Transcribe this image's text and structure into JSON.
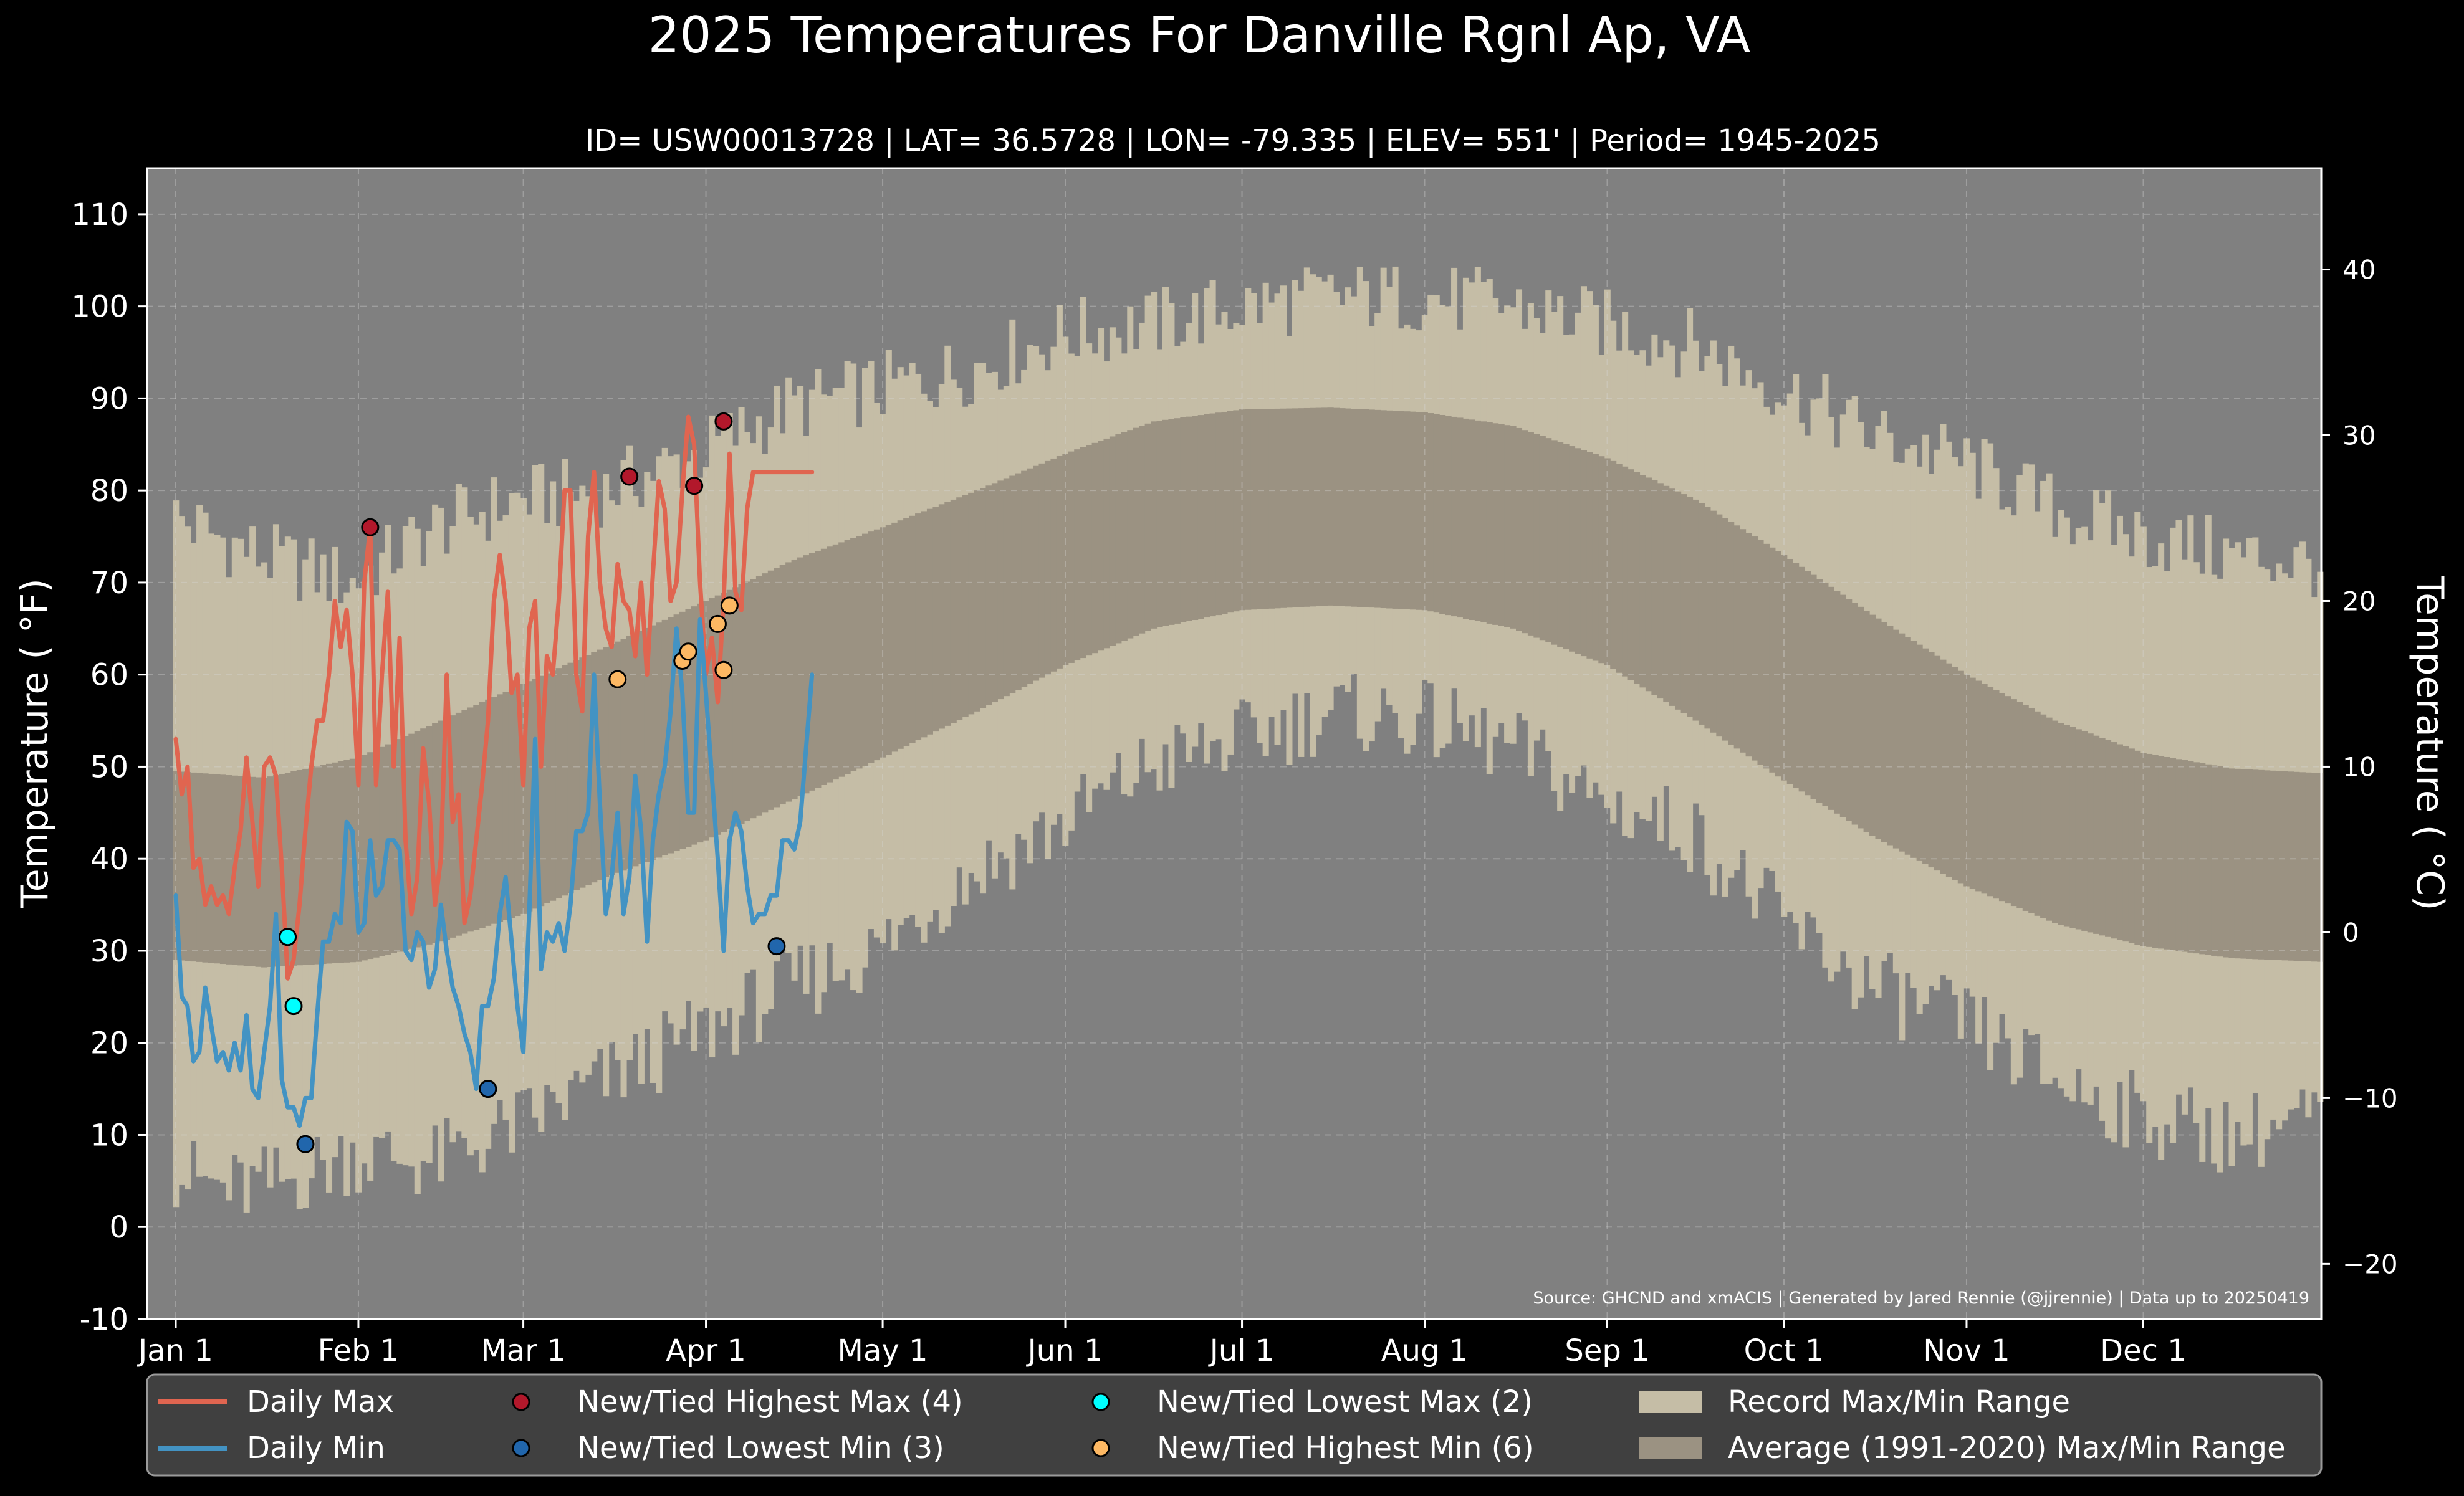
{
  "chart_data": {
    "type": "line",
    "title": "2025 Temperatures For Danville Rgnl Ap, VA",
    "subtitle": "ID= USW00013728 | LAT= 36.5728 | LON= -79.335 | ELEV= 551' | Period= 1945-2025",
    "ylabel": "Temperature ( °F)",
    "ylabel_right": "Temperature ( °C)",
    "source": "Source: GHCND and xmACIS | Generated by Jared Rennie (@jjrennie) | Data up to 20250419",
    "x_range": [
      1,
      365
    ],
    "ylim": [
      -10,
      115
    ],
    "y_ticks": [
      -10,
      0,
      10,
      20,
      30,
      40,
      50,
      60,
      70,
      80,
      90,
      100,
      110
    ],
    "y2_ticks": [
      -20,
      -10,
      0,
      10,
      20,
      30,
      40
    ],
    "x_ticks": [
      {
        "label": "Jan 1",
        "day": 1
      },
      {
        "label": "Feb 1",
        "day": 32
      },
      {
        "label": "Mar 1",
        "day": 60
      },
      {
        "label": "Apr 1",
        "day": 91
      },
      {
        "label": "May 1",
        "day": 121
      },
      {
        "label": "Jun 1",
        "day": 152
      },
      {
        "label": "Jul 1",
        "day": 182
      },
      {
        "label": "Aug 1",
        "day": 213
      },
      {
        "label": "Sep 1",
        "day": 244
      },
      {
        "label": "Oct 1",
        "day": 274
      },
      {
        "label": "Nov 1",
        "day": 305
      },
      {
        "label": "Dec 1",
        "day": 335
      }
    ],
    "grid": true,
    "legend_position": "bottom",
    "colors": {
      "background": "#000000",
      "plot": "#808080",
      "record_band": "#c5bda6",
      "normal_band": "#9b9282",
      "daily_max": "#e06550",
      "daily_min": "#4393c3",
      "highest_max": "#b2182b",
      "lowest_min": "#2166ac",
      "lowest_max": "#00ffff",
      "highest_min": "#fdb863"
    },
    "record_max_anchors": [
      [
        1,
        77
      ],
      [
        15,
        73
      ],
      [
        31,
        70
      ],
      [
        45,
        76
      ],
      [
        59,
        79
      ],
      [
        74,
        80
      ],
      [
        90,
        84
      ],
      [
        105,
        89
      ],
      [
        120,
        91
      ],
      [
        135,
        93
      ],
      [
        152,
        97
      ],
      [
        166,
        98
      ],
      [
        182,
        100
      ],
      [
        197,
        101
      ],
      [
        213,
        101
      ],
      [
        228,
        100
      ],
      [
        244,
        98
      ],
      [
        258,
        96
      ],
      [
        274,
        91
      ],
      [
        289,
        86
      ],
      [
        305,
        83
      ],
      [
        320,
        78
      ],
      [
        335,
        75
      ],
      [
        350,
        73
      ],
      [
        365,
        72
      ]
    ],
    "record_min_anchors": [
      [
        1,
        6
      ],
      [
        10,
        4
      ],
      [
        20,
        5
      ],
      [
        31,
        8
      ],
      [
        45,
        7
      ],
      [
        59,
        11
      ],
      [
        74,
        16
      ],
      [
        90,
        21
      ],
      [
        105,
        26
      ],
      [
        120,
        30
      ],
      [
        135,
        38
      ],
      [
        152,
        44
      ],
      [
        166,
        50
      ],
      [
        182,
        53
      ],
      [
        197,
        56
      ],
      [
        213,
        55
      ],
      [
        228,
        52
      ],
      [
        244,
        46
      ],
      [
        258,
        43
      ],
      [
        274,
        33
      ],
      [
        289,
        26
      ],
      [
        305,
        22
      ],
      [
        320,
        16
      ],
      [
        335,
        12
      ],
      [
        350,
        10
      ],
      [
        365,
        12
      ]
    ],
    "normal_max_anchors": [
      [
        1,
        49.5
      ],
      [
        16,
        48.8
      ],
      [
        32,
        51
      ],
      [
        46,
        55
      ],
      [
        60,
        59
      ],
      [
        74,
        63
      ],
      [
        91,
        68
      ],
      [
        106,
        72.5
      ],
      [
        121,
        76
      ],
      [
        137,
        80
      ],
      [
        152,
        84
      ],
      [
        167,
        87.5
      ],
      [
        182,
        88.8
      ],
      [
        197,
        89
      ],
      [
        213,
        88.5
      ],
      [
        228,
        87
      ],
      [
        244,
        83.5
      ],
      [
        259,
        79
      ],
      [
        274,
        73
      ],
      [
        289,
        66.5
      ],
      [
        305,
        60
      ],
      [
        320,
        55
      ],
      [
        335,
        51.5
      ],
      [
        350,
        49.8
      ],
      [
        365,
        49.3
      ]
    ],
    "normal_min_anchors": [
      [
        1,
        29
      ],
      [
        16,
        28.2
      ],
      [
        32,
        28.8
      ],
      [
        46,
        31
      ],
      [
        60,
        34
      ],
      [
        74,
        38
      ],
      [
        91,
        42
      ],
      [
        106,
        46.5
      ],
      [
        121,
        51
      ],
      [
        137,
        56
      ],
      [
        152,
        61
      ],
      [
        167,
        65
      ],
      [
        182,
        67
      ],
      [
        197,
        67.5
      ],
      [
        213,
        67
      ],
      [
        228,
        65
      ],
      [
        244,
        61
      ],
      [
        259,
        55
      ],
      [
        274,
        48.5
      ],
      [
        289,
        42.5
      ],
      [
        305,
        37
      ],
      [
        320,
        33
      ],
      [
        335,
        30.5
      ],
      [
        350,
        29.2
      ],
      [
        365,
        28.8
      ]
    ],
    "series": [
      {
        "name": "Daily Max",
        "x": [
          1,
          2,
          3,
          4,
          5,
          6,
          7,
          8,
          9,
          10,
          11,
          12,
          13,
          14,
          15,
          16,
          17,
          18,
          19,
          20,
          21,
          22,
          23,
          24,
          25,
          26,
          27,
          28,
          29,
          30,
          31,
          32,
          33,
          34,
          35,
          36,
          37,
          38,
          39,
          40,
          41,
          42,
          43,
          44,
          45,
          46,
          47,
          48,
          49,
          50,
          51,
          52,
          53,
          54,
          55,
          56,
          57,
          58,
          59,
          60,
          61,
          62,
          63,
          64,
          65,
          66,
          67,
          68,
          69,
          70,
          71,
          72,
          73,
          74,
          75,
          76,
          77,
          78,
          79,
          80,
          81,
          82,
          83,
          84,
          85,
          86,
          87,
          88,
          89,
          90,
          91,
          92,
          93,
          94,
          95,
          96,
          97,
          98,
          99,
          100,
          101,
          102,
          103,
          104,
          105,
          106,
          107,
          108,
          109
        ],
        "values": [
          53,
          47,
          50,
          39,
          40,
          35,
          37,
          35,
          36,
          34,
          39,
          43,
          51,
          44,
          37,
          50,
          51,
          49,
          39,
          27,
          29,
          35,
          43,
          50,
          55,
          55,
          60,
          68,
          63,
          67,
          60,
          48,
          70,
          76,
          48,
          60,
          69,
          50,
          64,
          42,
          34,
          38,
          52,
          46,
          35,
          40,
          60,
          44,
          47,
          33,
          36,
          42,
          48,
          55,
          68,
          73,
          68,
          58,
          60,
          48,
          65,
          68,
          50,
          62,
          60,
          68,
          80,
          80,
          60,
          56,
          75,
          82,
          70,
          65,
          63,
          72,
          68,
          67,
          62,
          70,
          60,
          71,
          81,
          78,
          68,
          70,
          80,
          88,
          85,
          70,
          60,
          64,
          57,
          68,
          84,
          69,
          67,
          78,
          82,
          82,
          82,
          82,
          82,
          82,
          82,
          82,
          82,
          82,
          82
        ],
        "note": "values after day 109 not recorded"
      },
      {
        "name": "Daily Min",
        "x": [
          1,
          2,
          3,
          4,
          5,
          6,
          7,
          8,
          9,
          10,
          11,
          12,
          13,
          14,
          15,
          16,
          17,
          18,
          19,
          20,
          21,
          22,
          23,
          24,
          25,
          26,
          27,
          28,
          29,
          30,
          31,
          32,
          33,
          34,
          35,
          36,
          37,
          38,
          39,
          40,
          41,
          42,
          43,
          44,
          45,
          46,
          47,
          48,
          49,
          50,
          51,
          52,
          53,
          54,
          55,
          56,
          57,
          58,
          59,
          60,
          61,
          62,
          63,
          64,
          65,
          66,
          67,
          68,
          69,
          70,
          71,
          72,
          73,
          74,
          75,
          76,
          77,
          78,
          79,
          80,
          81,
          82,
          83,
          84,
          85,
          86,
          87,
          88,
          89,
          90,
          91,
          92,
          93,
          94,
          95,
          96,
          97,
          98,
          99,
          100,
          101,
          102,
          103,
          104,
          105,
          106,
          107,
          108,
          109
        ],
        "values": [
          36,
          25,
          24,
          18,
          19,
          26,
          22,
          18,
          19,
          17,
          20,
          17,
          23,
          15,
          14,
          19,
          24,
          34,
          16,
          13,
          13,
          11,
          14,
          14,
          23,
          31,
          31,
          34,
          33,
          44,
          43,
          32,
          33,
          42,
          36,
          37,
          42,
          42,
          41,
          30,
          29,
          32,
          31,
          26,
          28,
          35,
          30,
          26,
          24,
          21,
          19,
          15,
          24,
          24,
          27,
          34,
          38,
          31,
          24,
          19,
          34,
          53,
          28,
          32,
          31,
          33,
          30,
          35,
          43,
          43,
          45,
          60,
          46,
          34,
          38,
          45,
          34,
          38,
          49,
          43,
          31,
          42,
          47,
          50,
          56,
          65,
          58,
          45,
          45,
          66,
          58,
          49,
          40,
          30,
          42,
          45,
          43,
          37,
          33,
          34,
          34,
          36,
          36,
          42,
          42,
          41,
          44,
          52,
          60
        ]
      }
    ],
    "markers": {
      "highest_max": [
        [
          34,
          76
        ],
        [
          78,
          81.5
        ],
        [
          89,
          80.5
        ],
        [
          94,
          87.5
        ]
      ],
      "lowest_min": [
        [
          23,
          9
        ],
        [
          54,
          15
        ],
        [
          103,
          30.5
        ]
      ],
      "lowest_max": [
        [
          20,
          31.5
        ],
        [
          21,
          24
        ]
      ],
      "highest_min": [
        [
          76,
          59.5
        ],
        [
          87,
          61.5
        ],
        [
          88,
          62.5
        ],
        [
          93,
          65.5
        ],
        [
          94,
          60.5
        ],
        [
          95,
          67.5
        ]
      ]
    },
    "legend": {
      "daily_max": "Daily Max",
      "daily_min": "Daily Min",
      "highest_max": "New/Tied Highest Max (4)",
      "lowest_min": "New/Tied Lowest Min (3)",
      "lowest_max": "New/Tied Lowest Max (2)",
      "highest_min": "New/Tied Highest Min (6)",
      "record_range": "Record Max/Min Range",
      "normal_range": "Average (1991-2020) Max/Min Range"
    }
  }
}
